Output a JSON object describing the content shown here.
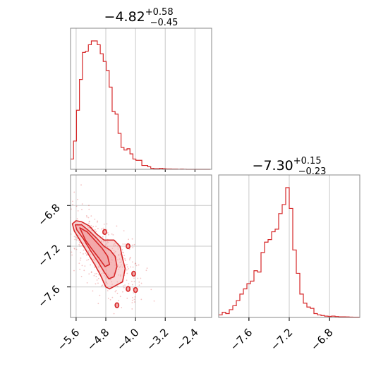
{
  "chart_data": {
    "type": "corner",
    "color": "#d62728",
    "fill_color": "#f2a6a7",
    "grid": true,
    "parameters": [
      {
        "title_value": "−4.82",
        "title_plus": "+0.58",
        "title_minus": "−0.45",
        "range": [
          -5.75,
          -1.95
        ],
        "ticks": [
          -5.6,
          -4.8,
          -4.0,
          -3.2,
          -2.4
        ],
        "tick_labels": [
          "−5.6",
          "−4.8",
          "−4.0",
          "−3.2",
          "−2.4"
        ]
      },
      {
        "title_value": "−7.30",
        "title_plus": "+0.15",
        "title_minus": "−0.23",
        "range": [
          -7.9,
          -6.5
        ],
        "ticks": [
          -7.6,
          -7.2,
          -6.8
        ],
        "tick_labels": [
          "−7.6",
          "−7.2",
          "−6.8"
        ]
      }
    ],
    "hist_1": {
      "bin_edges": [
        -5.75,
        -5.67,
        -5.59,
        -5.51,
        -5.43,
        -5.35,
        -5.27,
        -5.19,
        -5.11,
        -5.03,
        -4.95,
        -4.87,
        -4.79,
        -4.71,
        -4.63,
        -4.55,
        -4.47,
        -4.39,
        -4.31,
        -4.23,
        -4.15,
        -4.07,
        -3.99,
        -3.91,
        -3.83,
        -3.75,
        -3.67,
        -3.59,
        -3.51,
        -3.43,
        -3.35,
        -3.27,
        -3.19,
        -3.11,
        -3.03,
        -2.95,
        -2.87,
        -2.79,
        -2.71,
        -2.63,
        -2.55,
        -2.47,
        -2.39,
        -2.31,
        -2.23,
        -2.15,
        -2.07,
        -1.99
      ],
      "counts": [
        8,
        22,
        46,
        70,
        91,
        92,
        97,
        100,
        100,
        97,
        90,
        84,
        77,
        64,
        45,
        43,
        28,
        17,
        15,
        16,
        12,
        8,
        7,
        7,
        3,
        3,
        2,
        0.8,
        0.5,
        0.5,
        0.8,
        0.5,
        0.3,
        0.3,
        0.2,
        0.2,
        0.1,
        0.2,
        0.1,
        0,
        0,
        0,
        0,
        0,
        0,
        0,
        0
      ]
    },
    "hist_2": {
      "bin_edges": [
        -7.9,
        -7.865,
        -7.83,
        -7.795,
        -7.76,
        -7.725,
        -7.69,
        -7.655,
        -7.62,
        -7.585,
        -7.55,
        -7.515,
        -7.48,
        -7.445,
        -7.41,
        -7.375,
        -7.34,
        -7.305,
        -7.27,
        -7.235,
        -7.2,
        -7.165,
        -7.13,
        -7.095,
        -7.06,
        -7.025,
        -6.99,
        -6.955,
        -6.92,
        -6.885,
        -6.85,
        -6.815,
        -6.78,
        -6.745,
        -6.71,
        -6.675,
        -6.64,
        -6.605,
        -6.57,
        -6.535,
        -6.5
      ],
      "counts": [
        2,
        4,
        3,
        6,
        9,
        13,
        18,
        22,
        26,
        28,
        36,
        35,
        50,
        58,
        60,
        66,
        68,
        80,
        87,
        100,
        84,
        52,
        34,
        18,
        11,
        8,
        7,
        3,
        2,
        1.5,
        1,
        0.8,
        1,
        0.7,
        0.5,
        0.5,
        0.4,
        0.3,
        0.2,
        0.2
      ]
    },
    "scatter": {
      "contour_levels": [
        [
          [
            -5.7,
            -6.98
          ],
          [
            -5.6,
            -6.95
          ],
          [
            -5.45,
            -6.96
          ],
          [
            -5.25,
            -7.0
          ],
          [
            -5.05,
            -7.08
          ],
          [
            -4.85,
            -7.14
          ],
          [
            -4.58,
            -7.14
          ],
          [
            -4.42,
            -7.2
          ],
          [
            -4.35,
            -7.32
          ],
          [
            -4.28,
            -7.42
          ],
          [
            -4.35,
            -7.55
          ],
          [
            -4.5,
            -7.58
          ],
          [
            -4.7,
            -7.62
          ],
          [
            -4.8,
            -7.6
          ],
          [
            -4.95,
            -7.48
          ],
          [
            -5.1,
            -7.38
          ],
          [
            -5.3,
            -7.26
          ],
          [
            -5.5,
            -7.14
          ],
          [
            -5.65,
            -7.05
          ]
        ],
        [
          [
            -5.62,
            -6.99
          ],
          [
            -5.45,
            -6.99
          ],
          [
            -5.25,
            -7.05
          ],
          [
            -5.05,
            -7.12
          ],
          [
            -4.85,
            -7.2
          ],
          [
            -4.68,
            -7.24
          ],
          [
            -4.55,
            -7.3
          ],
          [
            -4.5,
            -7.4
          ],
          [
            -4.58,
            -7.5
          ],
          [
            -4.72,
            -7.52
          ],
          [
            -4.85,
            -7.45
          ],
          [
            -5.0,
            -7.36
          ],
          [
            -5.2,
            -7.25
          ],
          [
            -5.4,
            -7.13
          ],
          [
            -5.58,
            -7.04
          ]
        ],
        [
          [
            -5.5,
            -7.02
          ],
          [
            -5.3,
            -7.06
          ],
          [
            -5.1,
            -7.14
          ],
          [
            -4.9,
            -7.22
          ],
          [
            -4.75,
            -7.3
          ],
          [
            -4.7,
            -7.38
          ],
          [
            -4.82,
            -7.4
          ],
          [
            -4.98,
            -7.32
          ],
          [
            -5.15,
            -7.24
          ],
          [
            -5.35,
            -7.14
          ]
        ]
      ],
      "islands": [
        [
          -4.2,
          -7.2
        ],
        [
          -4.05,
          -7.47
        ],
        [
          -4.2,
          -7.62
        ],
        [
          -4.0,
          -7.63
        ],
        [
          -4.5,
          -7.78
        ],
        [
          -4.83,
          -7.06
        ]
      ],
      "point_count": 420
    }
  }
}
